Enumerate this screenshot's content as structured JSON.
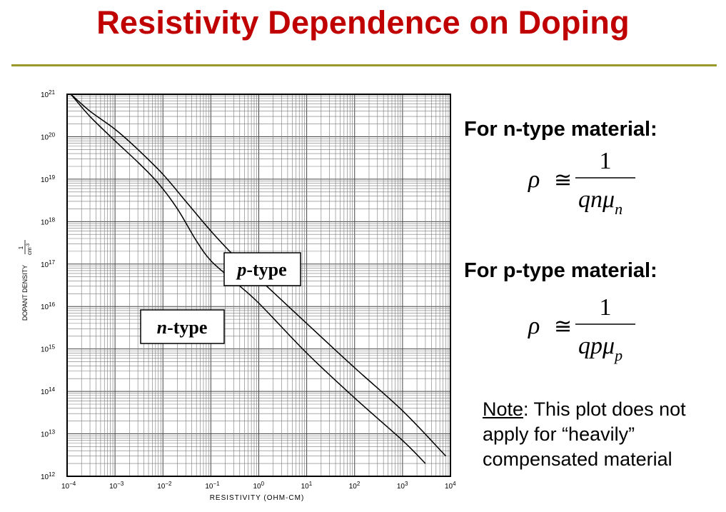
{
  "slide": {
    "title": "Resistivity Dependence on Doping"
  },
  "formulas": {
    "n_heading": "For n-type material:",
    "p_heading": "For p-type material:",
    "rho": "ρ",
    "approx": "≅",
    "numerator": "1",
    "n_denominator_main": "qnμ",
    "n_denominator_sub": "n",
    "p_denominator_main": "qpμ",
    "p_denominator_sub": "p"
  },
  "note": {
    "label": "Note",
    "text": ": This plot does not apply for “heavily” compensated material"
  },
  "chart_data": {
    "type": "line",
    "x_scale": "log",
    "y_scale": "log",
    "xlabel": "RESISTIVITY (OHM-CM)",
    "ylabel_main": "DOPANT DENSITY",
    "ylabel_unit_num": "1",
    "ylabel_unit_den": "cm",
    "ylabel_unit_exp": "-3",
    "xlim": [
      0.0001,
      10000
    ],
    "ylim": [
      1000000000000.0,
      1e+21
    ],
    "x_ticks": [
      {
        "base": "10",
        "exp": "−4"
      },
      {
        "base": "10",
        "exp": "−3"
      },
      {
        "base": "10",
        "exp": "−2"
      },
      {
        "base": "10",
        "exp": "−1"
      },
      {
        "base": "10",
        "exp": "0"
      },
      {
        "base": "10",
        "exp": "1"
      },
      {
        "base": "10",
        "exp": "2"
      },
      {
        "base": "10",
        "exp": "3"
      },
      {
        "base": "10",
        "exp": "4"
      }
    ],
    "y_ticks": [
      {
        "base": "10",
        "exp": "12"
      },
      {
        "base": "10",
        "exp": "13"
      },
      {
        "base": "10",
        "exp": "14"
      },
      {
        "base": "10",
        "exp": "15"
      },
      {
        "base": "10",
        "exp": "16"
      },
      {
        "base": "10",
        "exp": "17"
      },
      {
        "base": "10",
        "exp": "18"
      },
      {
        "base": "10",
        "exp": "19"
      },
      {
        "base": "10",
        "exp": "20"
      },
      {
        "base": "10",
        "exp": "21"
      }
    ],
    "grid": true,
    "series": [
      {
        "name": "n-type",
        "label_italic": "n",
        "label_rest": "-type",
        "x": [
          0.00012,
          0.0003,
          0.001,
          0.003,
          0.008,
          0.02,
          0.05,
          0.1,
          0.3,
          1,
          10,
          100,
          1000,
          3000
        ],
        "y": [
          1e+21,
          3e+20,
          8e+19,
          2.5e+19,
          8e+18,
          2e+18,
          3.5e+17,
          1.2e+17,
          4e+16,
          1.2e+16,
          800000000000000.0,
          70000000000000.0,
          7000000000000.0,
          2000000000000.0
        ]
      },
      {
        "name": "p-type",
        "label_italic": "p",
        "label_rest": "-type",
        "x": [
          0.00012,
          0.0003,
          0.001,
          0.003,
          0.01,
          0.03,
          0.1,
          0.3,
          1,
          10,
          100,
          1000,
          8000
        ],
        "y": [
          1e+21,
          4e+20,
          1.5e+20,
          5e+19,
          1.3e+19,
          3e+18,
          6e+17,
          1.6e+17,
          4.5e+16,
          4000000000000000.0,
          360000000000000.0,
          35000000000000.0,
          3000000000000.0
        ]
      }
    ]
  }
}
